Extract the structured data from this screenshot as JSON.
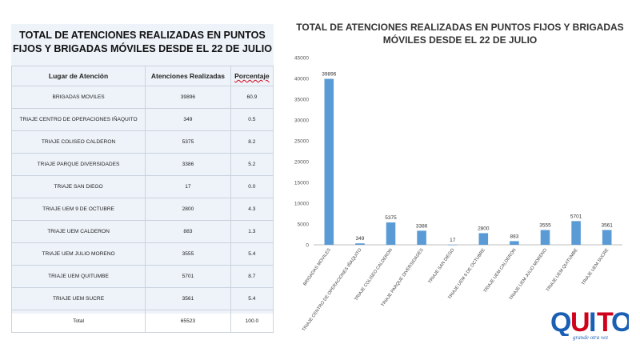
{
  "table": {
    "title": "TOTAL DE ATENCIONES REALIZADAS EN PUNTOS FIJOS Y BRIGADAS MÓVILES DESDE EL 22 DE JULIO",
    "headers": [
      "Lugar de Atención",
      "Atenciones Realizadas",
      "Porcentaje"
    ],
    "rows": [
      [
        "BRIGADAS MOVILES",
        "39896",
        "60.9"
      ],
      [
        "TRIAJE CENTRO DE OPERACIONES IÑAQUITO",
        "349",
        "0.5"
      ],
      [
        "TRIAJE COLISEO CALDERON",
        "5375",
        "8.2"
      ],
      [
        "TRIAJE PARQUE DIVERSIDADES",
        "3386",
        "5.2"
      ],
      [
        "TRIAJE SAN DIEGO",
        "17",
        "0.0"
      ],
      [
        "TRIAJE UEM 9 DE OCTUBRE",
        "2800",
        "4.3"
      ],
      [
        "TRIAJE UEM CALDERON",
        "883",
        "1.3"
      ],
      [
        "TRIAJE UEM JULIO MORENO",
        "3555",
        "5.4"
      ],
      [
        "TRIAJE UEM QUITUMBE",
        "5701",
        "8.7"
      ],
      [
        "TRIAJE UEM SUCRE",
        "3561",
        "5.4"
      ],
      [
        "Total",
        "65523",
        "100.0"
      ]
    ]
  },
  "chart_data": {
    "type": "bar",
    "title": "TOTAL DE ATENCIONES REALIZADAS EN PUNTOS FIJOS Y BRIGADAS MÓVILES DESDE EL 22 DE JULIO",
    "categories": [
      "BRIGADAS MOVILES",
      "TRIAJE CENTRO DE OPERACIONES IÑAQUITO",
      "TRIAJE COLISEO CALDERON",
      "TRIAJE PARQUE DIVERSIDADES",
      "TRIAJE SAN DIEGO",
      "TRIAJE UEM 9 DE OCTUBRE",
      "TRIAJE UEM CALDERON",
      "TRIAJE UEM JULIO MORENO",
      "TRIAJE UEM QUITUMBE",
      "TRIAJE UEM SUCRE"
    ],
    "values": [
      39896,
      349,
      5375,
      3386,
      17,
      2800,
      883,
      3555,
      5701,
      3561
    ],
    "yticks": [
      0,
      5000,
      10000,
      15000,
      20000,
      25000,
      30000,
      35000,
      40000,
      45000
    ],
    "ylim": [
      0,
      45000
    ],
    "grid": false,
    "bar_color": "#5b9bd5"
  },
  "logo": {
    "text": "QUITO",
    "tagline": "grande otra vez"
  }
}
